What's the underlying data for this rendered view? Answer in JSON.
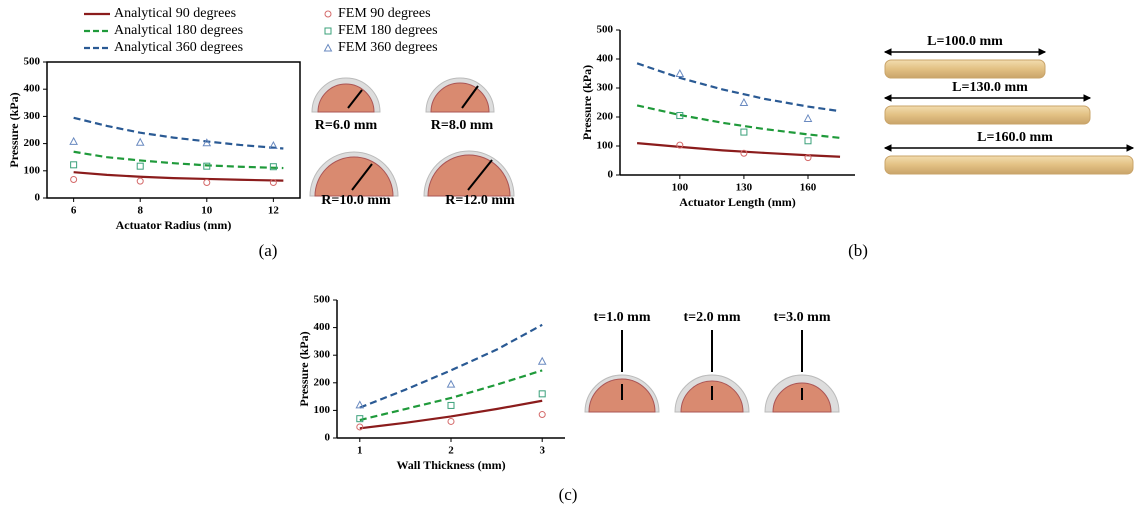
{
  "chart_data": [
    {
      "type": "line",
      "xlabel": "Actuator Radius (mm)",
      "ylabel": "Pressure (kPa)",
      "xlim": [
        5.2,
        12.8
      ],
      "xticks": [
        6,
        8,
        10,
        12
      ],
      "ylim": [
        0,
        500
      ],
      "yticks": [
        0,
        100,
        200,
        300,
        400,
        500
      ],
      "frame": true,
      "legend": "top",
      "series": [
        {
          "name": "Analytical   90 degrees",
          "mode": "line",
          "dash": "solid",
          "color": "#8b1c1c",
          "x": [
            6,
            7,
            8,
            9,
            10,
            11,
            12.3
          ],
          "values": [
            95,
            85,
            78,
            73,
            70,
            67,
            64
          ]
        },
        {
          "name": "FEM   90 degrees",
          "mode": "markers",
          "marker": "circle",
          "color": "#d46a6a",
          "x": [
            6,
            8,
            10,
            12
          ],
          "values": [
            68,
            62,
            57,
            57
          ]
        },
        {
          "name": "Analytical 180 degrees",
          "mode": "line",
          "dash": "dashed",
          "color": "#1f9a3a",
          "x": [
            6,
            7,
            8,
            9,
            10,
            11,
            12.3
          ],
          "values": [
            170,
            150,
            138,
            128,
            120,
            115,
            110
          ]
        },
        {
          "name": "FEM 180 degrees",
          "mode": "markers",
          "marker": "square",
          "color": "#3aa07a",
          "x": [
            6,
            8,
            10,
            12
          ],
          "values": [
            122,
            117,
            117,
            115
          ]
        },
        {
          "name": "Analytical 360 degrees",
          "mode": "line",
          "dash": "dashed",
          "color": "#2a5a94",
          "x": [
            6,
            7,
            8,
            9,
            10,
            11,
            12.3
          ],
          "values": [
            295,
            265,
            240,
            222,
            208,
            195,
            182
          ]
        },
        {
          "name": "FEM 360 degrees",
          "mode": "markers",
          "marker": "triangle",
          "color": "#6a8ac0",
          "x": [
            6,
            8,
            10,
            12
          ],
          "values": [
            208,
            205,
            203,
            193
          ]
        }
      ]
    },
    {
      "type": "line",
      "xlabel": "Actuator Length (mm)",
      "ylabel": "Pressure (kPa)",
      "xlim": [
        72,
        182
      ],
      "xticks": [
        100,
        130,
        160
      ],
      "ylim": [
        0,
        500
      ],
      "yticks": [
        0,
        100,
        200,
        300,
        400,
        500
      ],
      "frame": false,
      "series": [
        {
          "mode": "line",
          "dash": "solid",
          "color": "#8b1c1c",
          "x": [
            80,
            100,
            120,
            140,
            160,
            175
          ],
          "values": [
            110,
            97,
            85,
            76,
            68,
            63
          ]
        },
        {
          "mode": "markers",
          "marker": "circle",
          "color": "#d46a6a",
          "x": [
            100,
            130,
            160
          ],
          "values": [
            103,
            75,
            60
          ]
        },
        {
          "mode": "line",
          "dash": "dashed",
          "color": "#1f9a3a",
          "x": [
            80,
            100,
            120,
            140,
            160,
            175
          ],
          "values": [
            240,
            207,
            180,
            158,
            140,
            128
          ]
        },
        {
          "mode": "markers",
          "marker": "square",
          "color": "#3aa07a",
          "x": [
            100,
            130,
            160
          ],
          "values": [
            205,
            148,
            118
          ]
        },
        {
          "mode": "line",
          "dash": "dashed",
          "color": "#2a5a94",
          "x": [
            80,
            100,
            120,
            140,
            160,
            175
          ],
          "values": [
            385,
            335,
            295,
            262,
            236,
            220
          ]
        },
        {
          "mode": "markers",
          "marker": "triangle",
          "color": "#6a8ac0",
          "x": [
            100,
            130,
            160
          ],
          "values": [
            350,
            250,
            195
          ]
        }
      ]
    },
    {
      "type": "line",
      "xlabel": "Wall Thickness (mm)",
      "ylabel": "Pressure (kPa)",
      "xlim": [
        0.75,
        3.25
      ],
      "xticks": [
        1,
        2,
        3
      ],
      "ylim": [
        0,
        500
      ],
      "yticks": [
        0,
        100,
        200,
        300,
        400,
        500
      ],
      "frame": false,
      "series": [
        {
          "mode": "line",
          "dash": "solid",
          "color": "#8b1c1c",
          "x": [
            1,
            1.5,
            2,
            2.5,
            3
          ],
          "values": [
            35,
            55,
            78,
            105,
            135
          ]
        },
        {
          "mode": "markers",
          "marker": "circle",
          "color": "#d46a6a",
          "x": [
            1,
            2,
            3
          ],
          "values": [
            40,
            60,
            85
          ]
        },
        {
          "mode": "line",
          "dash": "dashed",
          "color": "#1f9a3a",
          "x": [
            1,
            1.5,
            2,
            2.5,
            3
          ],
          "values": [
            65,
            105,
            145,
            193,
            245
          ]
        },
        {
          "mode": "markers",
          "marker": "square",
          "color": "#3aa07a",
          "x": [
            1,
            2,
            3
          ],
          "values": [
            70,
            118,
            160
          ]
        },
        {
          "mode": "line",
          "dash": "dashed",
          "color": "#2a5a94",
          "x": [
            1,
            1.5,
            2,
            2.5,
            3
          ],
          "values": [
            110,
            175,
            245,
            320,
            410
          ]
        },
        {
          "mode": "markers",
          "marker": "triangle",
          "color": "#6a8ac0",
          "x": [
            1,
            2,
            3
          ],
          "values": [
            120,
            195,
            278
          ]
        }
      ]
    }
  ],
  "panels": [
    {
      "caption": "(a)",
      "labels": [
        "R=6.0 mm",
        "R=8.0 mm",
        "R=10.0 mm",
        "R=12.0 mm"
      ]
    },
    {
      "caption": "(b)",
      "labels": [
        "L=100.0 mm",
        "L=130.0 mm",
        "L=160.0 mm"
      ]
    },
    {
      "caption": "(c)",
      "labels": [
        "t=1.0 mm",
        "t=2.0 mm",
        "t=3.0 mm"
      ]
    }
  ]
}
